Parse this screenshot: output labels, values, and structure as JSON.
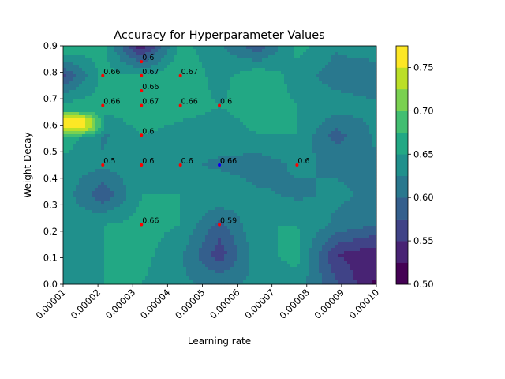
{
  "chart_data": {
    "type": "contour",
    "title": "Accuracy for Hyperparameter Values",
    "xlabel": "Learning rate",
    "ylabel": "Weight Decay",
    "xlim": [
      1e-05,
      0.0001
    ],
    "ylim": [
      0.0,
      0.9
    ],
    "xticks": [
      "0.00001",
      "0.00002",
      "0.00003",
      "0.00004",
      "0.00005",
      "0.00006",
      "0.00007",
      "0.00008",
      "0.00009",
      "0.00010"
    ],
    "yticks": [
      "0.0",
      "0.1",
      "0.2",
      "0.3",
      "0.4",
      "0.5",
      "0.6",
      "0.7",
      "0.8",
      "0.9"
    ],
    "colorbar": {
      "levels": [
        0.5,
        0.525,
        0.55,
        0.575,
        0.6,
        0.625,
        0.65,
        0.675,
        0.7,
        0.725,
        0.75,
        0.775
      ],
      "colors": [
        "#440154",
        "#482374",
        "#404387",
        "#345f8d",
        "#29788e",
        "#20908c",
        "#22a884",
        "#42be71",
        "#7ad151",
        "#bbdf27",
        "#fde725"
      ],
      "ticks": [
        "0.50",
        "0.55",
        "0.60",
        "0.65",
        "0.70",
        "0.75"
      ]
    },
    "grid_x": [
      1e-05,
      2.14e-05,
      3.25e-05,
      4.37e-05,
      5.49e-05,
      6.6e-05,
      7.72e-05,
      8.84e-05,
      0.0001
    ],
    "grid_y": [
      0.0,
      0.1125,
      0.225,
      0.3375,
      0.45,
      0.5625,
      0.675,
      0.7875,
      0.9
    ],
    "grid_z": [
      [
        0.64,
        0.65,
        0.65,
        0.63,
        0.62,
        0.63,
        0.64,
        0.58,
        0.52
      ],
      [
        0.64,
        0.65,
        0.66,
        0.63,
        0.56,
        0.64,
        0.66,
        0.55,
        0.53
      ],
      [
        0.64,
        0.65,
        0.66,
        0.65,
        0.59,
        0.65,
        0.65,
        0.62,
        0.6
      ],
      [
        0.64,
        0.58,
        0.65,
        0.65,
        0.65,
        0.63,
        0.62,
        0.63,
        0.62
      ],
      [
        0.64,
        0.63,
        0.64,
        0.63,
        0.62,
        0.61,
        0.63,
        0.62,
        0.62
      ],
      [
        0.67,
        0.62,
        0.65,
        0.64,
        0.64,
        0.65,
        0.65,
        0.59,
        0.63
      ],
      [
        0.66,
        0.66,
        0.67,
        0.66,
        0.65,
        0.66,
        0.65,
        0.64,
        0.63
      ],
      [
        0.57,
        0.66,
        0.65,
        0.67,
        0.64,
        0.67,
        0.64,
        0.61,
        0.6
      ],
      [
        0.68,
        0.66,
        0.53,
        0.66,
        0.63,
        0.58,
        0.66,
        0.63,
        0.65
      ]
    ],
    "highlight_row": {
      "y_from": 0.55,
      "y_to": 0.66,
      "x_to": 2.14e-05,
      "value": 0.76
    },
    "points": [
      {
        "x": 3.25e-05,
        "y": 0.84,
        "label": "0.6",
        "color": "#ff0000"
      },
      {
        "x": 2.14e-05,
        "y": 0.7875,
        "label": "0.66",
        "color": "#ff0000"
      },
      {
        "x": 3.25e-05,
        "y": 0.7875,
        "label": "0.67",
        "color": "#ff0000"
      },
      {
        "x": 4.37e-05,
        "y": 0.7875,
        "label": "0.67",
        "color": "#ff0000"
      },
      {
        "x": 3.25e-05,
        "y": 0.73,
        "label": "0.66",
        "color": "#ff0000"
      },
      {
        "x": 2.14e-05,
        "y": 0.675,
        "label": "0.66",
        "color": "#ff0000"
      },
      {
        "x": 3.25e-05,
        "y": 0.675,
        "label": "0.67",
        "color": "#ff0000"
      },
      {
        "x": 4.37e-05,
        "y": 0.675,
        "label": "0.66",
        "color": "#ff0000"
      },
      {
        "x": 5.49e-05,
        "y": 0.675,
        "label": "0.6",
        "color": "#ff0000"
      },
      {
        "x": 3.25e-05,
        "y": 0.5625,
        "label": "0.6",
        "color": "#ff0000"
      },
      {
        "x": 2.14e-05,
        "y": 0.45,
        "label": "0.5",
        "color": "#ff0000"
      },
      {
        "x": 3.25e-05,
        "y": 0.45,
        "label": "0.6",
        "color": "#ff0000"
      },
      {
        "x": 4.37e-05,
        "y": 0.45,
        "label": "0.6",
        "color": "#ff0000"
      },
      {
        "x": 5.49e-05,
        "y": 0.45,
        "label": "0.6",
        "color": "#ff0000"
      },
      {
        "x": 5.49e-05,
        "y": 0.45,
        "label": "0.66",
        "color": "#0000ff"
      },
      {
        "x": 7.72e-05,
        "y": 0.45,
        "label": "0.6",
        "color": "#ff0000"
      },
      {
        "x": 3.25e-05,
        "y": 0.225,
        "label": "0.66",
        "color": "#ff0000"
      },
      {
        "x": 5.49e-05,
        "y": 0.225,
        "label": "0.59",
        "color": "#ff0000"
      }
    ]
  }
}
